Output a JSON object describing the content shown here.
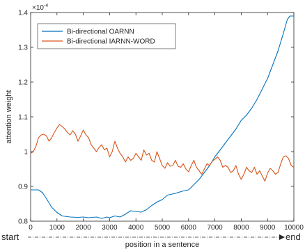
{
  "chart_data": {
    "type": "line",
    "title": "",
    "xlabel": "position in a sentence",
    "ylabel": "attention weight",
    "y_exponent_label": "×10",
    "y_exponent_power": "-4",
    "xlim": [
      0,
      10000
    ],
    "ylim": [
      0.8,
      1.4
    ],
    "x_ticks": [
      0,
      1000,
      2000,
      3000,
      4000,
      5000,
      6000,
      7000,
      8000,
      9000,
      10000
    ],
    "y_ticks": [
      0.8,
      0.9,
      1.0,
      1.1,
      1.2,
      1.3,
      1.4
    ],
    "y_tick_labels": [
      "0.8",
      "0.9",
      "1",
      "1.1",
      "1.2",
      "1.3",
      "1.4"
    ],
    "grid": false,
    "legend_position": "top-left",
    "start_label": "start",
    "end_label": "end",
    "series": [
      {
        "name": "Bi-directional OARNN",
        "color": "#0072BD",
        "points": [
          [
            0,
            0.89
          ],
          [
            300,
            0.89
          ],
          [
            450,
            0.882
          ],
          [
            600,
            0.865
          ],
          [
            800,
            0.84
          ],
          [
            1000,
            0.825
          ],
          [
            1200,
            0.815
          ],
          [
            1500,
            0.812
          ],
          [
            1800,
            0.811
          ],
          [
            2000,
            0.812
          ],
          [
            2200,
            0.81
          ],
          [
            2500,
            0.812
          ],
          [
            2700,
            0.808
          ],
          [
            2900,
            0.812
          ],
          [
            3000,
            0.81
          ],
          [
            3200,
            0.815
          ],
          [
            3400,
            0.812
          ],
          [
            3600,
            0.82
          ],
          [
            3800,
            0.83
          ],
          [
            4000,
            0.828
          ],
          [
            4200,
            0.826
          ],
          [
            4400,
            0.833
          ],
          [
            4600,
            0.845
          ],
          [
            4800,
            0.855
          ],
          [
            5000,
            0.862
          ],
          [
            5200,
            0.875
          ],
          [
            5500,
            0.88
          ],
          [
            5800,
            0.887
          ],
          [
            6000,
            0.89
          ],
          [
            6200,
            0.905
          ],
          [
            6400,
            0.92
          ],
          [
            6600,
            0.94
          ],
          [
            6800,
            0.96
          ],
          [
            7000,
            0.985
          ],
          [
            7200,
            1.005
          ],
          [
            7400,
            1.025
          ],
          [
            7600,
            1.045
          ],
          [
            7800,
            1.065
          ],
          [
            8000,
            1.09
          ],
          [
            8200,
            1.105
          ],
          [
            8400,
            1.125
          ],
          [
            8600,
            1.15
          ],
          [
            8800,
            1.18
          ],
          [
            9000,
            1.21
          ],
          [
            9200,
            1.25
          ],
          [
            9400,
            1.29
          ],
          [
            9600,
            1.34
          ],
          [
            9750,
            1.38
          ],
          [
            9850,
            1.39
          ],
          [
            10000,
            1.39
          ]
        ]
      },
      {
        "name": "Bi-directional IARNN-WORD",
        "color": "#D95319",
        "points": [
          [
            0,
            0.995
          ],
          [
            100,
            1.0
          ],
          [
            200,
            1.015
          ],
          [
            300,
            1.04
          ],
          [
            400,
            1.048
          ],
          [
            500,
            1.05
          ],
          [
            600,
            1.045
          ],
          [
            700,
            1.03
          ],
          [
            800,
            1.04
          ],
          [
            900,
            1.055
          ],
          [
            1000,
            1.068
          ],
          [
            1100,
            1.078
          ],
          [
            1200,
            1.072
          ],
          [
            1300,
            1.065
          ],
          [
            1400,
            1.055
          ],
          [
            1500,
            1.048
          ],
          [
            1600,
            1.06
          ],
          [
            1700,
            1.05
          ],
          [
            1800,
            1.03
          ],
          [
            1900,
            1.045
          ],
          [
            2000,
            1.062
          ],
          [
            2100,
            1.048
          ],
          [
            2200,
            1.04
          ],
          [
            2300,
            1.02
          ],
          [
            2400,
            1.01
          ],
          [
            2500,
            1.0
          ],
          [
            2600,
            1.012
          ],
          [
            2700,
            1.02
          ],
          [
            2800,
            1.005
          ],
          [
            2900,
            1.01
          ],
          [
            3000,
            0.985
          ],
          [
            3100,
            1.0
          ],
          [
            3200,
            1.03
          ],
          [
            3300,
            1.01
          ],
          [
            3400,
            0.995
          ],
          [
            3500,
            0.985
          ],
          [
            3600,
            0.97
          ],
          [
            3700,
            0.985
          ],
          [
            3800,
            0.975
          ],
          [
            3900,
            0.98
          ],
          [
            4000,
            0.995
          ],
          [
            4100,
            0.985
          ],
          [
            4200,
            0.975
          ],
          [
            4300,
            1.005
          ],
          [
            4400,
            0.99
          ],
          [
            4500,
            0.995
          ],
          [
            4600,
            0.975
          ],
          [
            4700,
            0.97
          ],
          [
            4800,
            1.0
          ],
          [
            4900,
            0.98
          ],
          [
            5000,
            0.96
          ],
          [
            5100,
            0.952
          ],
          [
            5200,
            0.968
          ],
          [
            5300,
            0.958
          ],
          [
            5400,
            0.96
          ],
          [
            5500,
            0.975
          ],
          [
            5600,
            0.958
          ],
          [
            5700,
            0.955
          ],
          [
            5800,
            0.965
          ],
          [
            5900,
            0.95
          ],
          [
            6000,
            0.942
          ],
          [
            6100,
            0.96
          ],
          [
            6200,
            0.975
          ],
          [
            6300,
            0.955
          ],
          [
            6400,
            0.945
          ],
          [
            6500,
            0.935
          ],
          [
            6600,
            0.95
          ],
          [
            6700,
            0.965
          ],
          [
            6800,
            0.96
          ],
          [
            6900,
            0.972
          ],
          [
            7000,
            0.978
          ],
          [
            7100,
            0.985
          ],
          [
            7200,
            0.975
          ],
          [
            7300,
            0.955
          ],
          [
            7400,
            0.96
          ],
          [
            7500,
            0.955
          ],
          [
            7600,
            0.94
          ],
          [
            7700,
            0.945
          ],
          [
            7800,
            0.96
          ],
          [
            7900,
            0.935
          ],
          [
            8000,
            0.92
          ],
          [
            8100,
            0.935
          ],
          [
            8200,
            0.955
          ],
          [
            8300,
            0.945
          ],
          [
            8400,
            0.94
          ],
          [
            8500,
            0.955
          ],
          [
            8600,
            0.935
          ],
          [
            8700,
            0.945
          ],
          [
            8800,
            0.93
          ],
          [
            8900,
            0.915
          ],
          [
            9000,
            0.938
          ],
          [
            9100,
            0.952
          ],
          [
            9200,
            0.945
          ],
          [
            9300,
            0.935
          ],
          [
            9400,
            0.94
          ],
          [
            9500,
            0.965
          ],
          [
            9600,
            0.985
          ],
          [
            9700,
            0.988
          ],
          [
            9800,
            0.98
          ],
          [
            9900,
            0.96
          ],
          [
            10000,
            0.955
          ]
        ]
      }
    ]
  }
}
